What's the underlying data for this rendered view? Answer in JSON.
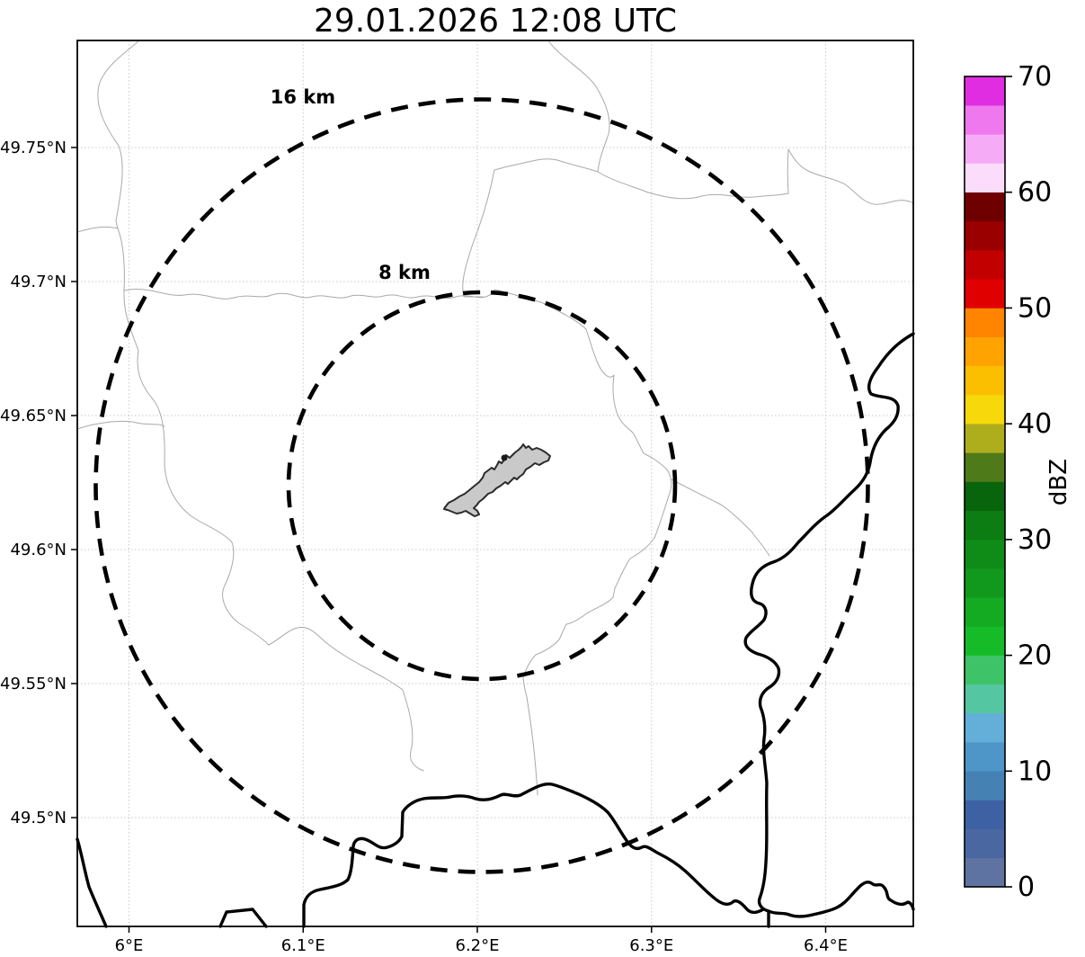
{
  "title": "29.01.2026 12:08 UTC",
  "x_axis": {
    "ticks": [
      {
        "label": "6°E",
        "lon": 6.0
      },
      {
        "label": "6.1°E",
        "lon": 6.1
      },
      {
        "label": "6.2°E",
        "lon": 6.2
      },
      {
        "label": "6.3°E",
        "lon": 6.3
      },
      {
        "label": "6.4°E",
        "lon": 6.4
      }
    ]
  },
  "y_axis": {
    "ticks": [
      {
        "label": "49.75°N",
        "lat": 49.75
      },
      {
        "label": "49.7°N",
        "lat": 49.7
      },
      {
        "label": "49.65°N",
        "lat": 49.65
      },
      {
        "label": "49.6°N",
        "lat": 49.6
      },
      {
        "label": "49.55°N",
        "lat": 49.55
      },
      {
        "label": "49.5°N",
        "lat": 49.5
      }
    ]
  },
  "range_rings": [
    {
      "label": "16 km",
      "radius_km": 16
    },
    {
      "label": "8 km",
      "radius_km": 8
    }
  ],
  "colorbar": {
    "label": "dBZ",
    "min": 0,
    "max": 70,
    "tick_values": [
      0,
      10,
      20,
      30,
      40,
      50,
      60,
      70
    ],
    "segment_step_dbz": 2.5,
    "segment_colors_bottom_to_top": [
      "#5e73a1",
      "#4b67a1",
      "#3e61a4",
      "#4681b4",
      "#4e96c8",
      "#63afd9",
      "#55c6a2",
      "#3fc369",
      "#16bc28",
      "#14aa22",
      "#11991d",
      "#0e8c17",
      "#0c7d12",
      "#09650c",
      "#4e7a1a",
      "#aeae1d",
      "#f6d80b",
      "#fcbf00",
      "#ffa300",
      "#ff8400",
      "#e10000",
      "#c30000",
      "#9b0000",
      "#6f0000",
      "#fbdcfb",
      "#f6abf6",
      "#ef78ef",
      "#e12de1"
    ]
  },
  "map_style": {
    "ring_color": "#000000",
    "border_color": "#000000",
    "admin_boundary_color": "#a9a9a9",
    "grid_color": "#c8c8c8",
    "urban_area_fill": "#c9c9c9",
    "urban_area_stroke": "#2b2b2b",
    "frame_color": "#000000"
  }
}
